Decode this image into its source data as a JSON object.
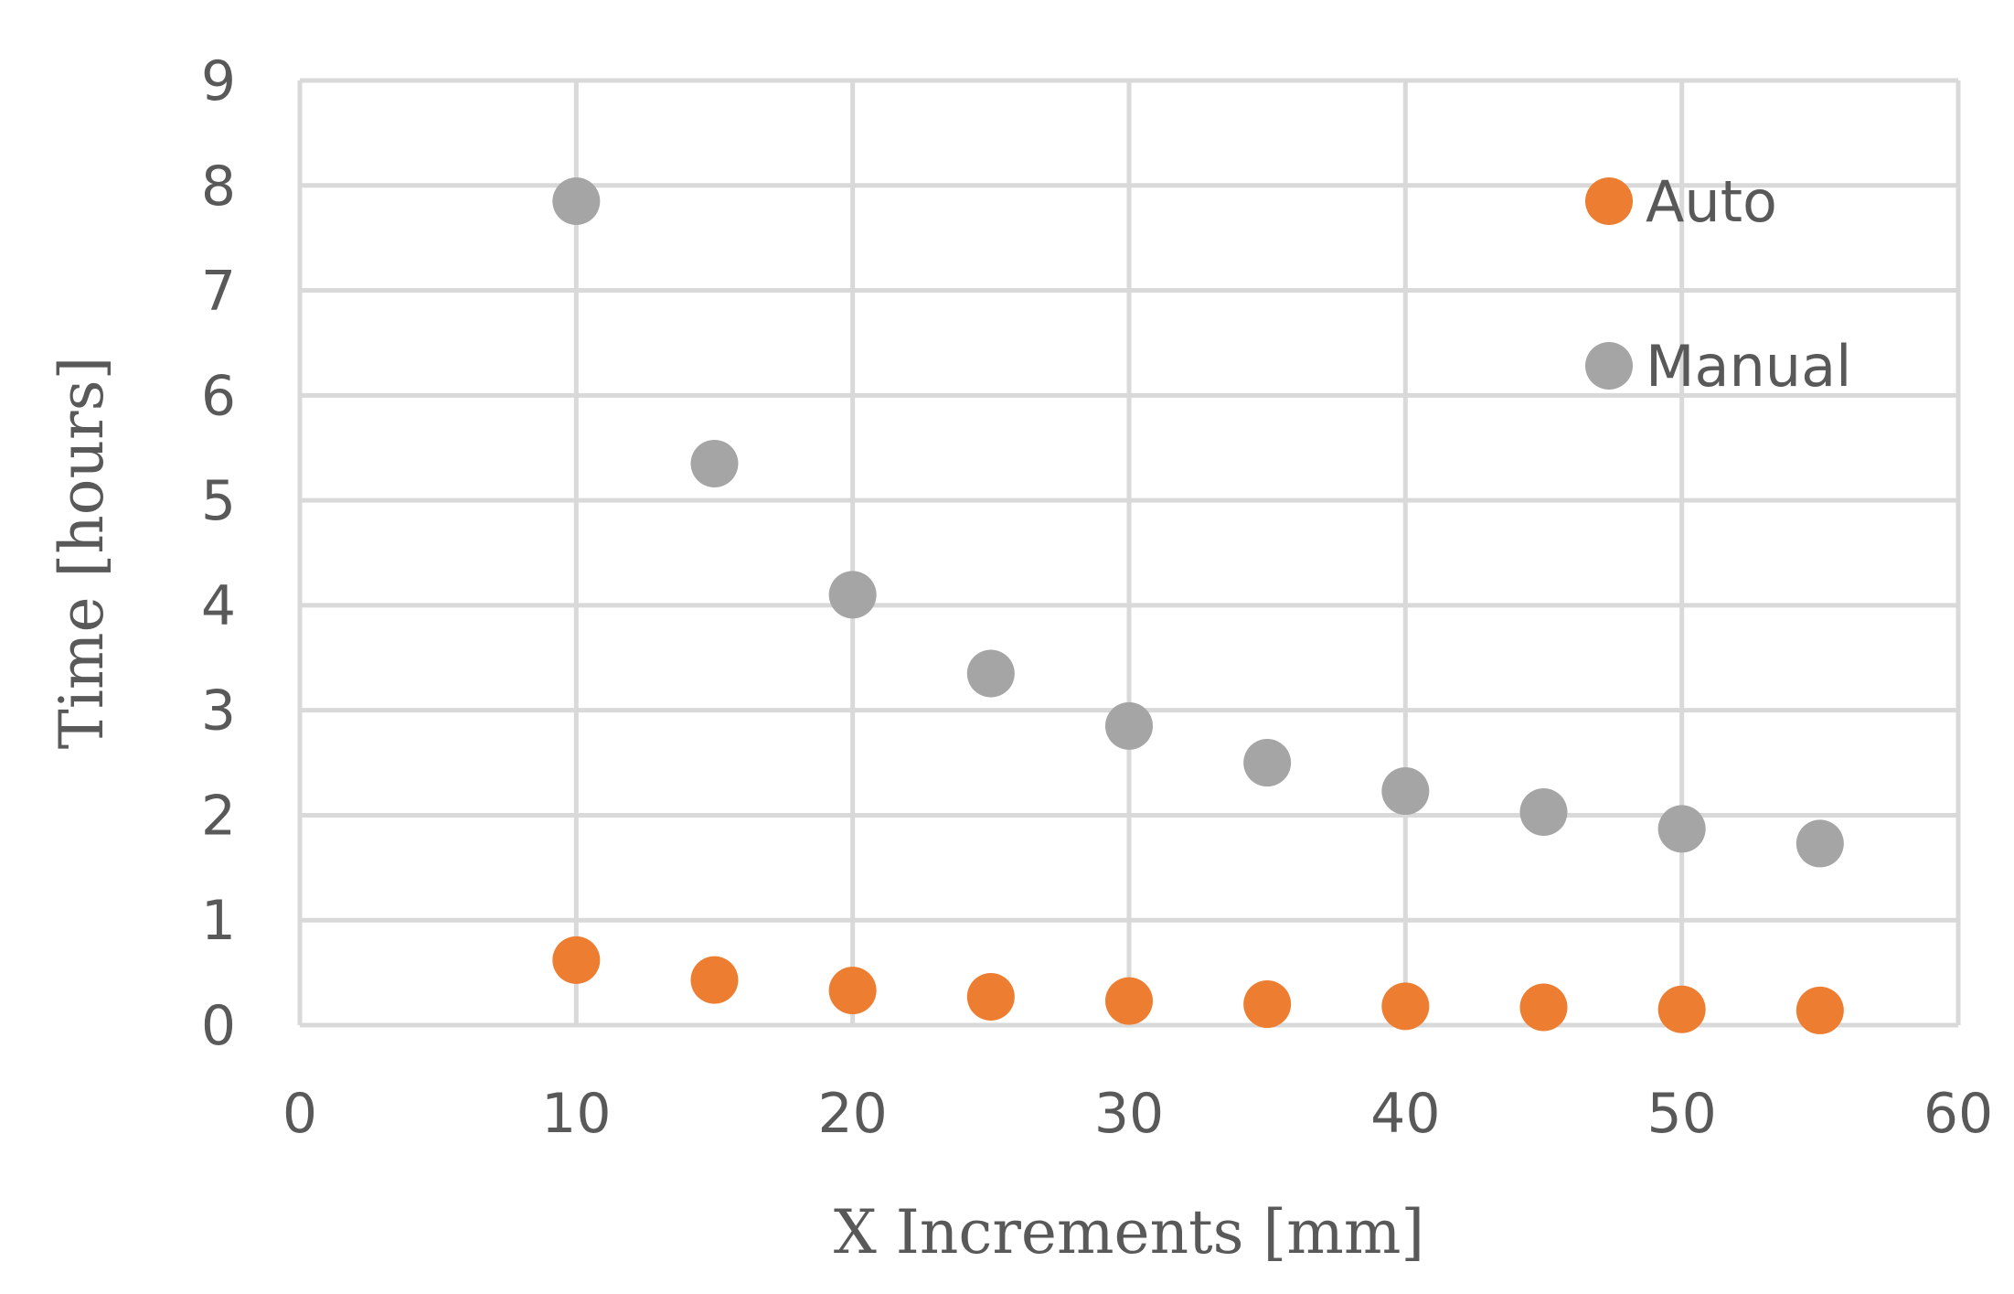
{
  "chart_data": {
    "type": "scatter",
    "title": "",
    "xlabel": "X Increments [mm]",
    "ylabel": "Time [hours]",
    "xlim": [
      0,
      60
    ],
    "ylim": [
      0,
      9
    ],
    "xticks": [
      0,
      10,
      20,
      30,
      40,
      50,
      60
    ],
    "yticks": [
      0,
      1,
      2,
      3,
      4,
      5,
      6,
      7,
      8,
      9
    ],
    "grid": true,
    "legend_position": "top-right",
    "x": [
      10,
      15,
      20,
      25,
      30,
      35,
      40,
      45,
      50,
      55
    ],
    "series": [
      {
        "name": "Auto",
        "color": "#ED7D31",
        "values": [
          0.62,
          0.43,
          0.33,
          0.27,
          0.23,
          0.2,
          0.18,
          0.17,
          0.15,
          0.14
        ]
      },
      {
        "name": "Manual",
        "color": "#A5A5A5",
        "values": [
          7.85,
          5.35,
          4.1,
          3.35,
          2.85,
          2.5,
          2.23,
          2.03,
          1.87,
          1.73
        ]
      }
    ]
  }
}
